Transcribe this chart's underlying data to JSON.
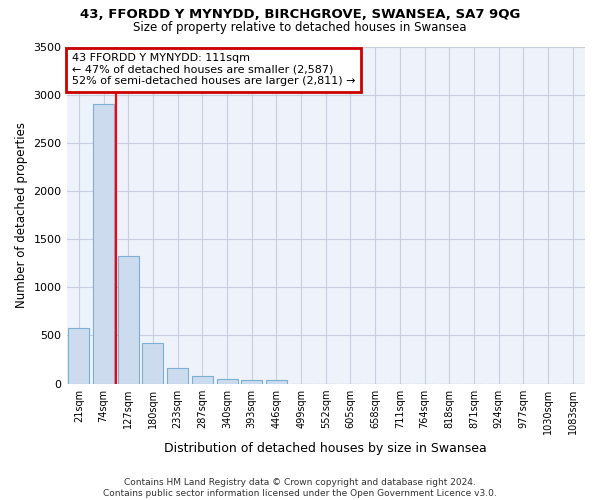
{
  "title1": "43, FFORDD Y MYNYDD, BIRCHGROVE, SWANSEA, SA7 9QG",
  "title2": "Size of property relative to detached houses in Swansea",
  "xlabel": "Distribution of detached houses by size in Swansea",
  "ylabel": "Number of detached properties",
  "categories": [
    "21sqm",
    "74sqm",
    "127sqm",
    "180sqm",
    "233sqm",
    "287sqm",
    "340sqm",
    "393sqm",
    "446sqm",
    "499sqm",
    "552sqm",
    "605sqm",
    "658sqm",
    "711sqm",
    "764sqm",
    "818sqm",
    "871sqm",
    "924sqm",
    "977sqm",
    "1030sqm",
    "1083sqm"
  ],
  "bar_heights": [
    580,
    2900,
    1320,
    420,
    160,
    75,
    50,
    35,
    35,
    0,
    0,
    0,
    0,
    0,
    0,
    0,
    0,
    0,
    0,
    0,
    0
  ],
  "bar_color": "#ccdcee",
  "bar_edge_color": "#7bafd4",
  "property_line_x": 1.5,
  "annotation_text": "43 FFORDD Y MYNYDD: 111sqm\n← 47% of detached houses are smaller (2,587)\n52% of semi-detached houses are larger (2,811) →",
  "annotation_box_color": "#ffffff",
  "annotation_box_edge": "#cc0000",
  "ylim": [
    0,
    3500
  ],
  "yticks": [
    0,
    500,
    1000,
    1500,
    2000,
    2500,
    3000,
    3500
  ],
  "background_color": "#ffffff",
  "plot_bg_color": "#eef2fa",
  "grid_color": "#c8cfe0",
  "footer": "Contains HM Land Registry data © Crown copyright and database right 2024.\nContains public sector information licensed under the Open Government Licence v3.0."
}
